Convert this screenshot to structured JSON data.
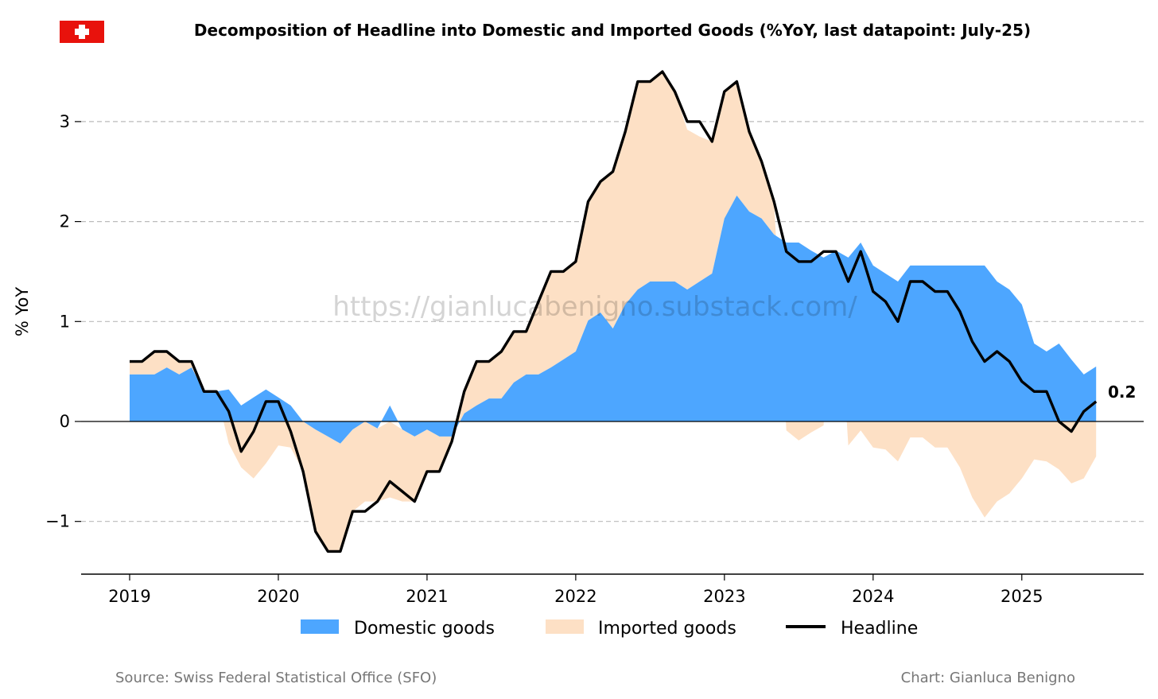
{
  "header": {
    "title": "Decomposition of Headline into Domestic and Imported Goods (%YoY, last datapoint: July-25)",
    "flag_icon": "swiss-flag-icon"
  },
  "footer": {
    "source": "Source: Swiss Federal Statistical Office (SFO)",
    "credit": "Chart: Gianluca Benigno"
  },
  "watermark": "https://gianlucabenigno.substack.com/",
  "colors": {
    "domestic": "#4da6ff",
    "imported": "#fde0c5",
    "headline": "#000000",
    "flag_red": "#e8120c",
    "grid": "#bbbbbb"
  },
  "chart_data": {
    "type": "area",
    "ylabel": "% YoY",
    "xlabel": "",
    "x_start": "2019-01",
    "x_end": "2025-07",
    "x_ticks": [
      "2019",
      "2020",
      "2021",
      "2022",
      "2023",
      "2024",
      "2025"
    ],
    "y_ticks": [
      -1,
      0,
      1,
      2,
      3
    ],
    "y_tick_labels": [
      "−1",
      "0",
      "1",
      "2",
      "3"
    ],
    "ylim": [
      -1.55,
      3.65
    ],
    "grid": "horizontal dashed",
    "legend_position": "bottom-center",
    "last_value_label": "0.2",
    "series": [
      {
        "name": "Domestic goods",
        "type": "area",
        "values": [
          0.47,
          0.47,
          0.47,
          0.54,
          0.47,
          0.54,
          0.3,
          0.3,
          0.32,
          0.16,
          0.24,
          0.32,
          0.24,
          0.16,
          0.0,
          -0.08,
          -0.15,
          -0.22,
          -0.08,
          0.0,
          -0.07,
          0.16,
          -0.08,
          -0.15,
          -0.08,
          -0.15,
          -0.15,
          0.08,
          0.16,
          0.23,
          0.23,
          0.39,
          0.47,
          0.47,
          0.54,
          0.62,
          0.7,
          1.01,
          1.09,
          0.93,
          1.17,
          1.32,
          1.4,
          1.4,
          1.4,
          1.32,
          1.4,
          1.48,
          2.03,
          2.26,
          2.1,
          2.03,
          1.87,
          1.79,
          1.79,
          1.71,
          1.64,
          1.71,
          1.64,
          1.79,
          1.56,
          1.48,
          1.4,
          1.56,
          1.56,
          1.56,
          1.56,
          1.56,
          1.56,
          1.56,
          1.4,
          1.32,
          1.17,
          0.78,
          0.7,
          0.78,
          0.62,
          0.47,
          0.55
        ]
      },
      {
        "name": "Imported goods",
        "type": "area",
        "values": [
          0.13,
          0.13,
          0.23,
          0.16,
          0.13,
          0.06,
          0.0,
          0.0,
          -0.22,
          -0.46,
          -0.57,
          -0.42,
          -0.24,
          -0.26,
          -0.5,
          -1.02,
          -1.15,
          -1.08,
          -0.82,
          -0.8,
          -0.73,
          -0.76,
          -0.72,
          -0.65,
          -0.42,
          -0.35,
          -0.05,
          0.22,
          0.44,
          0.37,
          0.47,
          0.51,
          0.43,
          0.73,
          0.96,
          0.88,
          0.9,
          1.19,
          1.31,
          1.57,
          1.73,
          2.08,
          2.0,
          2.1,
          1.9,
          1.6,
          1.45,
          1.32,
          1.27,
          1.14,
          0.8,
          0.57,
          0.33,
          -0.09,
          -0.19,
          -0.11,
          -0.04,
          0.01,
          -0.24,
          -0.09,
          -0.26,
          -0.28,
          -0.4,
          -0.16,
          -0.16,
          -0.26,
          -0.26,
          -0.46,
          -0.76,
          -0.96,
          -0.8,
          -0.72,
          -0.57,
          -0.38,
          -0.4,
          -0.48,
          -0.62,
          -0.57,
          -0.35
        ]
      },
      {
        "name": "Headline",
        "type": "line",
        "values": [
          0.6,
          0.6,
          0.7,
          0.7,
          0.6,
          0.6,
          0.3,
          0.3,
          0.1,
          -0.3,
          -0.1,
          0.2,
          0.2,
          -0.1,
          -0.5,
          -1.1,
          -1.3,
          -1.3,
          -0.9,
          -0.9,
          -0.8,
          -0.6,
          -0.7,
          -0.8,
          -0.5,
          -0.5,
          -0.2,
          0.3,
          0.6,
          0.6,
          0.7,
          0.9,
          0.9,
          1.2,
          1.5,
          1.5,
          1.6,
          2.2,
          2.4,
          2.5,
          2.9,
          3.4,
          3.4,
          3.5,
          3.3,
          3.0,
          3.0,
          2.8,
          3.3,
          3.4,
          2.9,
          2.6,
          2.2,
          1.7,
          1.6,
          1.6,
          1.7,
          1.7,
          1.4,
          1.7,
          1.3,
          1.2,
          1.0,
          1.4,
          1.4,
          1.3,
          1.3,
          1.1,
          0.8,
          0.6,
          0.7,
          0.6,
          0.4,
          0.3,
          0.3,
          0.0,
          -0.1,
          0.1,
          0.2
        ]
      }
    ]
  }
}
